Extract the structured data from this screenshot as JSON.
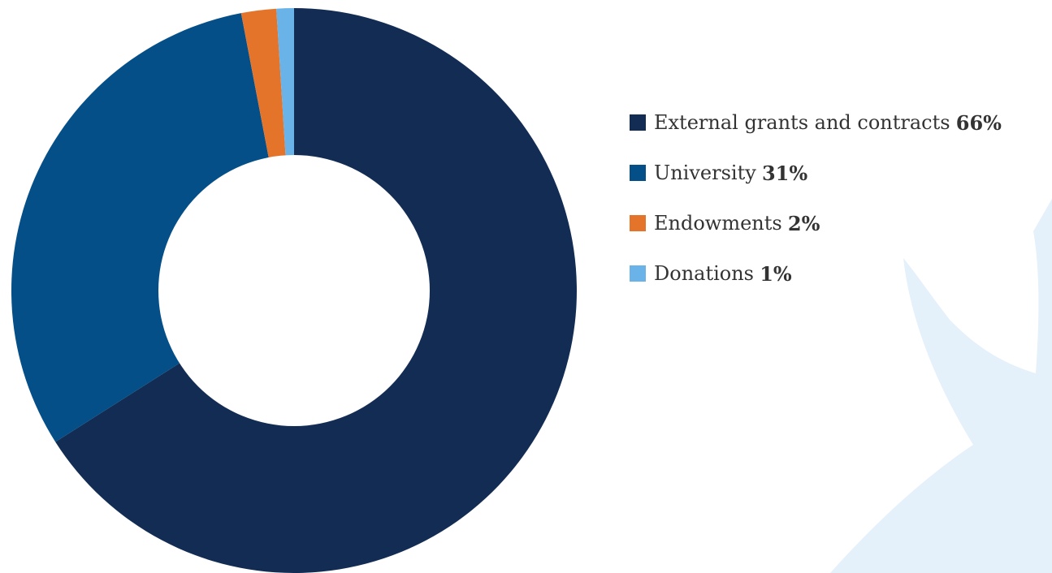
{
  "colors": {
    "background_shape": "#e4f0fa",
    "hole": "#ffffff",
    "text": "#333333"
  },
  "chart_data": {
    "type": "pie",
    "title": "",
    "donut": true,
    "start_angle_deg": 0,
    "direction": "clockwise",
    "legend_position": "right",
    "slices": [
      {
        "label": "External grants and contracts",
        "value": 66,
        "value_label": "66%",
        "color": "#132c53"
      },
      {
        "label": "University",
        "value": 31,
        "value_label": "31%",
        "color": "#044f87"
      },
      {
        "label": "Endowments",
        "value": 2,
        "value_label": "2%",
        "color": "#e5742b"
      },
      {
        "label": "Donations",
        "value": 1,
        "value_label": "1%",
        "color": "#69b3e8"
      }
    ]
  }
}
